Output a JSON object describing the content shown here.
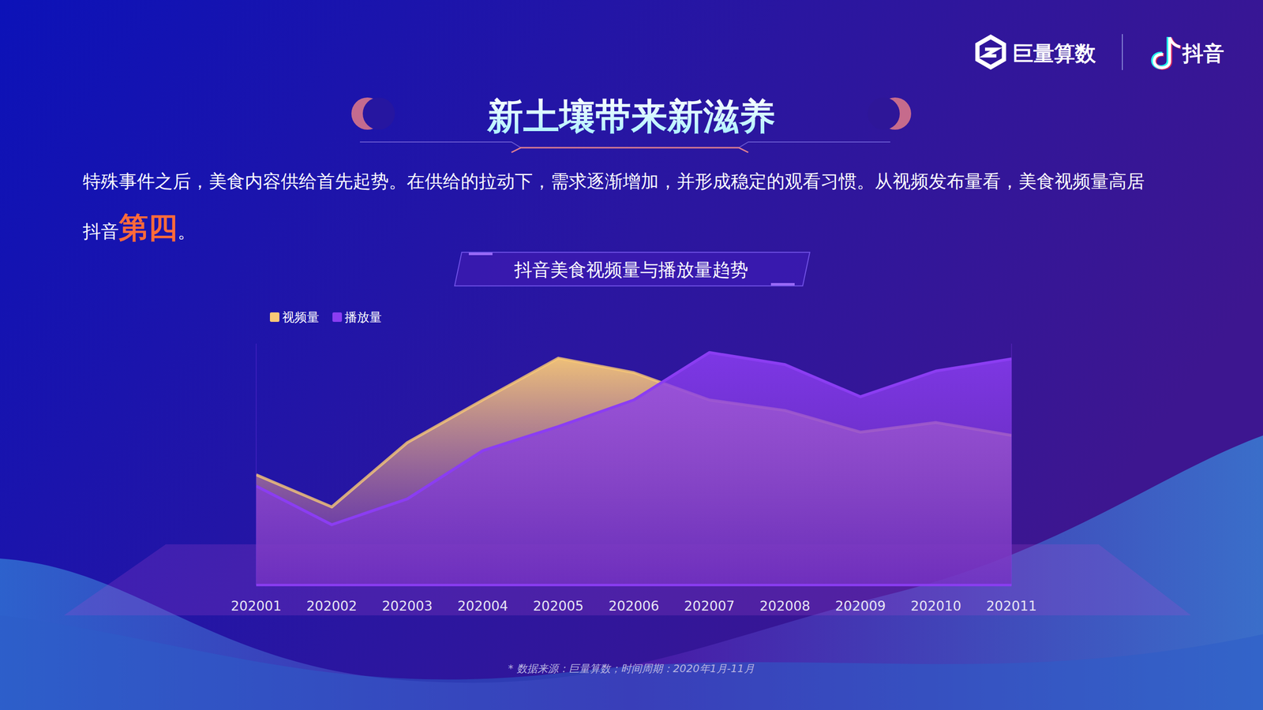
{
  "page": {
    "logo_left": "巨量算数",
    "logo_right": "抖音",
    "title": "新土壤带来新滋养",
    "paragraph_line1": "特殊事件之后，美食内容供给首先起势。在供给的拉动下，需求逐渐增加，并形成稳定的观看习惯。从视频发布量看，美食视频量高居",
    "paragraph_line2_prefix": "抖音",
    "paragraph_highlight": "第四",
    "paragraph_line2_suffix": "。",
    "footnote": "* 数据来源：巨量算数；时间周期：2020年1月-11月"
  },
  "chart_data": {
    "type": "area",
    "title": "抖音美食视频量与播放量趋势",
    "categories": [
      "202001",
      "202002",
      "202003",
      "202004",
      "202005",
      "202006",
      "202007",
      "202008",
      "202009",
      "202010",
      "202011"
    ],
    "series": [
      {
        "name": "视频量",
        "color": "#f8c877",
        "values": [
          137,
          97,
          177,
          230,
          282,
          264,
          230,
          217,
          190,
          202,
          186
        ]
      },
      {
        "name": "播放量",
        "color": "#8b3df2",
        "values": [
          123,
          75,
          107,
          167,
          197,
          230,
          289,
          274,
          234,
          266,
          281
        ]
      }
    ],
    "ylim": [
      0,
      300
    ],
    "legend": "top-left",
    "tick_labels": "x",
    "grid": false
  }
}
